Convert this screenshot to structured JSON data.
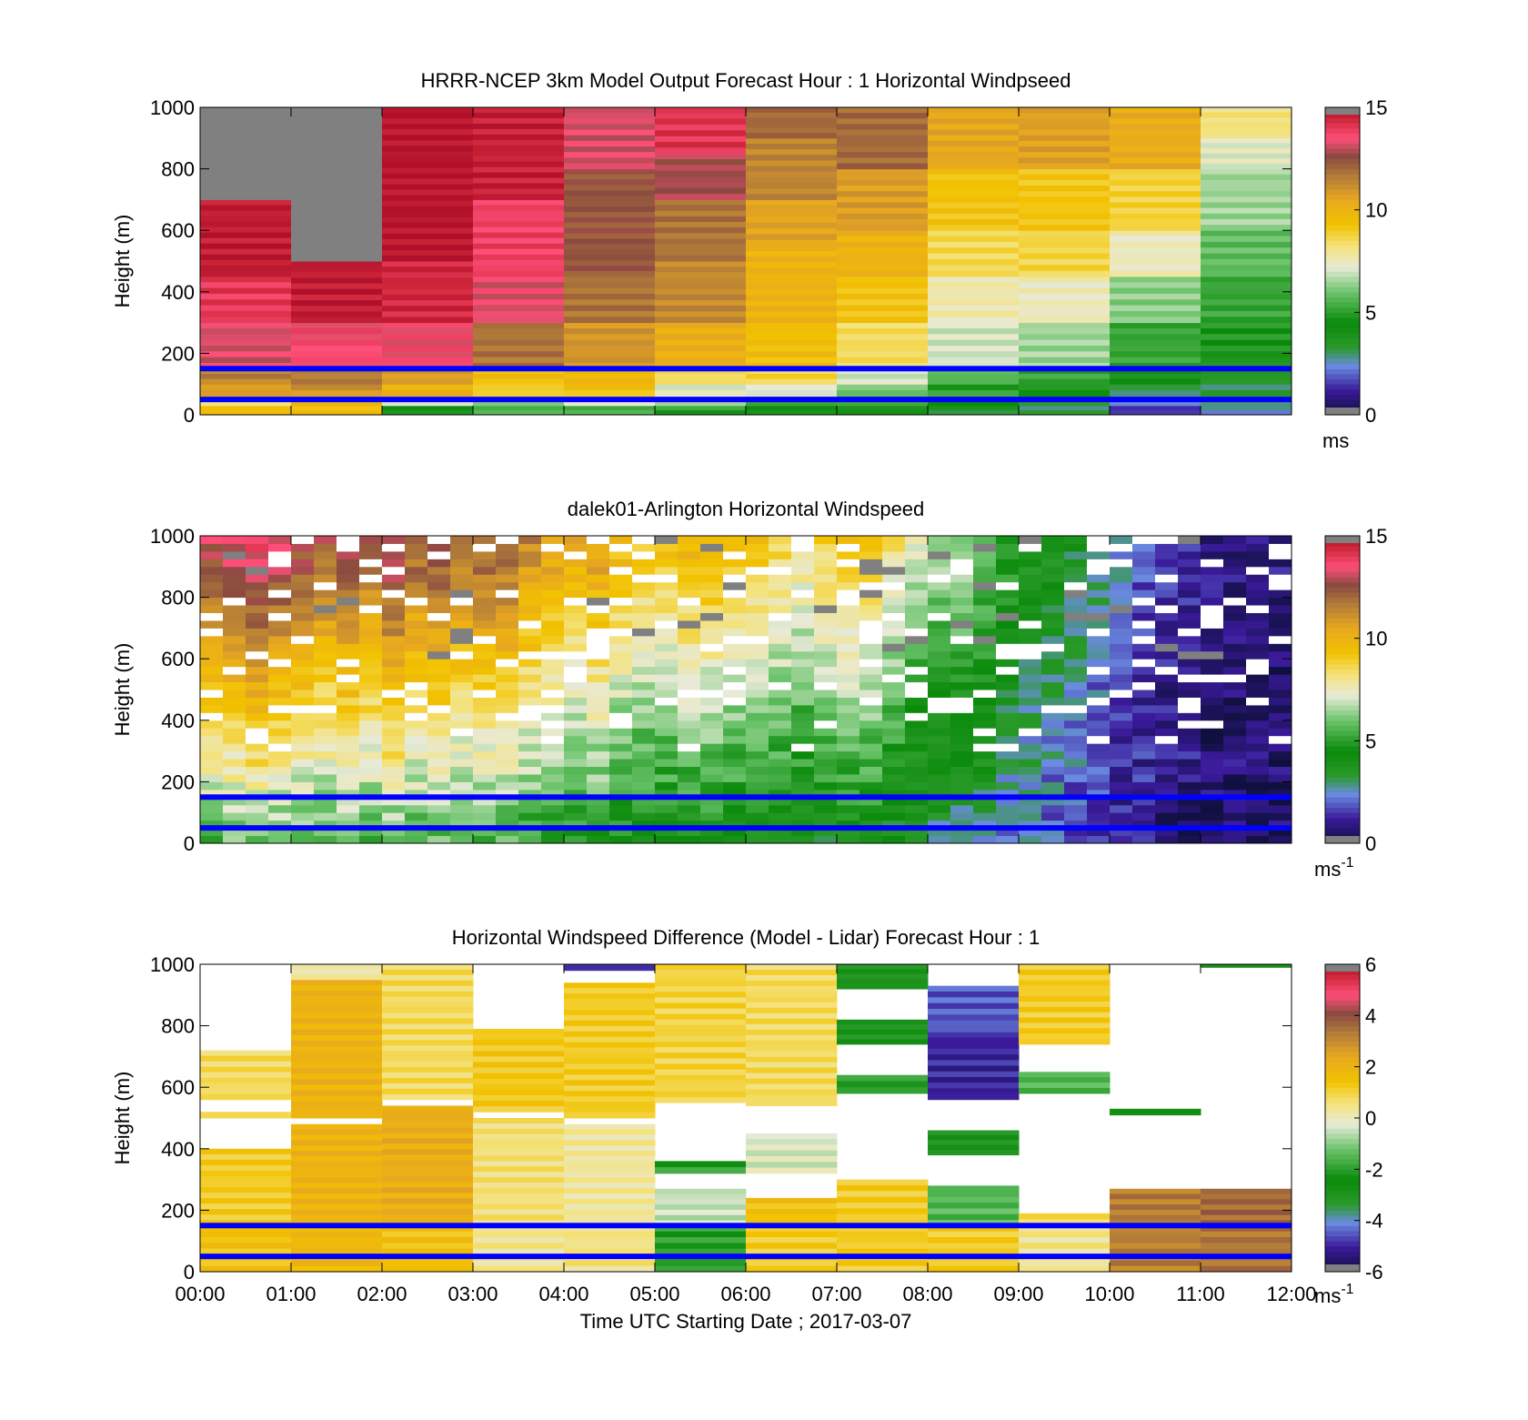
{
  "figure": {
    "xlabel": "Time UTC  Starting Date ; 2017-03-07",
    "x_ticks": [
      "00:00",
      "01:00",
      "02:00",
      "03:00",
      "04:00",
      "05:00",
      "06:00",
      "07:00",
      "08:00",
      "09:00",
      "10:00",
      "11:00",
      "12:00"
    ]
  },
  "colors": {
    "highlight_lines": "#0000ff",
    "missing": "#808080"
  },
  "chart_data": [
    {
      "type": "heatmap",
      "title": "HRRR-NCEP 3km Model Output   Forecast Hour : 1 Horizontal Windpseed",
      "xlabel": "",
      "ylabel": "Height (m)",
      "ylim": [
        0,
        1000
      ],
      "y_ticks": [
        "0",
        "200",
        "400",
        "600",
        "800",
        "1000"
      ],
      "colorbar": {
        "min": 0,
        "max": 15,
        "ticks": [
          "0",
          "5",
          "10",
          "15"
        ],
        "unit": "ms",
        "unit_sup": ""
      },
      "hlines_m": [
        150,
        50
      ],
      "columns": [
        {
          "t": "00:00",
          "vals": [
            {
              "y0": 0,
              "y1": 30,
              "v": 9.5
            },
            {
              "y0": 30,
              "y1": 60,
              "v": 8.5
            },
            {
              "y0": 60,
              "y1": 100,
              "v": 10.8
            },
            {
              "y0": 100,
              "y1": 150,
              "v": 11.5
            },
            {
              "y0": 150,
              "y1": 300,
              "v": 13.2
            },
            {
              "y0": 300,
              "y1": 450,
              "v": 14
            },
            {
              "y0": 450,
              "y1": 700,
              "v": 14.7
            },
            {
              "y0": 700,
              "y1": 1000,
              "v": "nan"
            }
          ]
        },
        {
          "t": "01:00",
          "vals": [
            {
              "y0": 0,
              "y1": 30,
              "v": 9.5
            },
            {
              "y0": 30,
              "y1": 60,
              "v": 9.8
            },
            {
              "y0": 60,
              "y1": 100,
              "v": 11
            },
            {
              "y0": 100,
              "y1": 150,
              "v": 11.6
            },
            {
              "y0": 150,
              "y1": 300,
              "v": 13.6
            },
            {
              "y0": 300,
              "y1": 500,
              "v": 14.7
            },
            {
              "y0": 500,
              "y1": 1000,
              "v": "nan"
            }
          ]
        },
        {
          "t": "02:00",
          "vals": [
            {
              "y0": 0,
              "y1": 30,
              "v": 4
            },
            {
              "y0": 30,
              "y1": 60,
              "v": 7
            },
            {
              "y0": 60,
              "y1": 100,
              "v": 10
            },
            {
              "y0": 100,
              "y1": 150,
              "v": 10.8
            },
            {
              "y0": 150,
              "y1": 300,
              "v": 13.5
            },
            {
              "y0": 300,
              "y1": 500,
              "v": 14.4
            },
            {
              "y0": 500,
              "y1": 1000,
              "v": 14.9
            }
          ]
        },
        {
          "t": "03:00",
          "vals": [
            {
              "y0": 0,
              "y1": 30,
              "v": 5.5
            },
            {
              "y0": 30,
              "y1": 60,
              "v": 6.5
            },
            {
              "y0": 60,
              "y1": 100,
              "v": 9
            },
            {
              "y0": 100,
              "y1": 150,
              "v": 9.5
            },
            {
              "y0": 150,
              "y1": 300,
              "v": 11.8
            },
            {
              "y0": 300,
              "y1": 450,
              "v": 13.3
            },
            {
              "y0": 450,
              "y1": 700,
              "v": 13.8
            },
            {
              "y0": 700,
              "y1": 1000,
              "v": 14.6
            }
          ]
        },
        {
          "t": "04:00",
          "vals": [
            {
              "y0": 0,
              "y1": 30,
              "v": 5.5
            },
            {
              "y0": 30,
              "y1": 60,
              "v": 7
            },
            {
              "y0": 60,
              "y1": 100,
              "v": 9.3
            },
            {
              "y0": 100,
              "y1": 150,
              "v": 9.7
            },
            {
              "y0": 150,
              "y1": 300,
              "v": 11
            },
            {
              "y0": 300,
              "y1": 450,
              "v": 11.8
            },
            {
              "y0": 450,
              "y1": 800,
              "v": 12.4
            },
            {
              "y0": 800,
              "y1": 1000,
              "v": 13.2
            }
          ]
        },
        {
          "t": "05:00",
          "vals": [
            {
              "y0": 0,
              "y1": 30,
              "v": 5
            },
            {
              "y0": 30,
              "y1": 60,
              "v": 6.5
            },
            {
              "y0": 60,
              "y1": 100,
              "v": 7.2
            },
            {
              "y0": 100,
              "y1": 150,
              "v": 8.5
            },
            {
              "y0": 150,
              "y1": 300,
              "v": 10.2
            },
            {
              "y0": 300,
              "y1": 500,
              "v": 11.3
            },
            {
              "y0": 500,
              "y1": 700,
              "v": 11.8
            },
            {
              "y0": 700,
              "y1": 850,
              "v": 12.8
            },
            {
              "y0": 850,
              "y1": 1000,
              "v": 14.1
            }
          ]
        },
        {
          "t": "06:00",
          "vals": [
            {
              "y0": 0,
              "y1": 30,
              "v": 4.5
            },
            {
              "y0": 30,
              "y1": 60,
              "v": 5.5
            },
            {
              "y0": 60,
              "y1": 100,
              "v": 7.2
            },
            {
              "y0": 100,
              "y1": 150,
              "v": 8.7
            },
            {
              "y0": 150,
              "y1": 300,
              "v": 9.5
            },
            {
              "y0": 300,
              "y1": 550,
              "v": 10
            },
            {
              "y0": 550,
              "y1": 700,
              "v": 10.6
            },
            {
              "y0": 700,
              "y1": 900,
              "v": 11.4
            },
            {
              "y0": 900,
              "y1": 1000,
              "v": 12
            }
          ]
        },
        {
          "t": "07:00",
          "vals": [
            {
              "y0": 0,
              "y1": 30,
              "v": 4
            },
            {
              "y0": 30,
              "y1": 60,
              "v": 5
            },
            {
              "y0": 60,
              "y1": 100,
              "v": 6
            },
            {
              "y0": 100,
              "y1": 150,
              "v": 7
            },
            {
              "y0": 150,
              "y1": 300,
              "v": 8.5
            },
            {
              "y0": 300,
              "y1": 450,
              "v": 9.3
            },
            {
              "y0": 450,
              "y1": 600,
              "v": 10
            },
            {
              "y0": 600,
              "y1": 800,
              "v": 10.8
            },
            {
              "y0": 800,
              "y1": 1000,
              "v": 12
            }
          ]
        },
        {
          "t": "08:00",
          "vals": [
            {
              "y0": 0,
              "y1": 30,
              "v": 3.5
            },
            {
              "y0": 30,
              "y1": 60,
              "v": 4.5
            },
            {
              "y0": 60,
              "y1": 100,
              "v": 5
            },
            {
              "y0": 100,
              "y1": 150,
              "v": 5.7
            },
            {
              "y0": 150,
              "y1": 300,
              "v": 7
            },
            {
              "y0": 300,
              "y1": 450,
              "v": 7.7
            },
            {
              "y0": 450,
              "y1": 600,
              "v": 8.6
            },
            {
              "y0": 600,
              "y1": 800,
              "v": 9.3
            },
            {
              "y0": 800,
              "y1": 1000,
              "v": 10.5
            }
          ]
        },
        {
          "t": "09:00",
          "vals": [
            {
              "y0": 0,
              "y1": 30,
              "v": 3
            },
            {
              "y0": 30,
              "y1": 60,
              "v": 3.5
            },
            {
              "y0": 60,
              "y1": 100,
              "v": 4.8
            },
            {
              "y0": 100,
              "y1": 150,
              "v": 5.2
            },
            {
              "y0": 150,
              "y1": 300,
              "v": 6.5
            },
            {
              "y0": 300,
              "y1": 450,
              "v": 7.5
            },
            {
              "y0": 450,
              "y1": 600,
              "v": 8.7
            },
            {
              "y0": 600,
              "y1": 800,
              "v": 9.2
            },
            {
              "y0": 800,
              "y1": 1000,
              "v": 10.7
            }
          ]
        },
        {
          "t": "10:00",
          "vals": [
            {
              "y0": 0,
              "y1": 30,
              "v": 1.5
            },
            {
              "y0": 30,
              "y1": 60,
              "v": 2
            },
            {
              "y0": 60,
              "y1": 100,
              "v": 3
            },
            {
              "y0": 100,
              "y1": 150,
              "v": 4
            },
            {
              "y0": 150,
              "y1": 300,
              "v": 5.2
            },
            {
              "y0": 300,
              "y1": 450,
              "v": 6.3
            },
            {
              "y0": 450,
              "y1": 600,
              "v": 7.5
            },
            {
              "y0": 600,
              "y1": 800,
              "v": 8.8
            },
            {
              "y0": 800,
              "y1": 1000,
              "v": 10.3
            }
          ]
        },
        {
          "t": "11:00",
          "vals": [
            {
              "y0": 0,
              "y1": 30,
              "v": 2.5
            },
            {
              "y0": 30,
              "y1": 60,
              "v": 3
            },
            {
              "y0": 60,
              "y1": 100,
              "v": 3.2
            },
            {
              "y0": 100,
              "y1": 150,
              "v": 3.5
            },
            {
              "y0": 150,
              "y1": 300,
              "v": 4.8
            },
            {
              "y0": 300,
              "y1": 450,
              "v": 5.2
            },
            {
              "y0": 450,
              "y1": 600,
              "v": 5.8
            },
            {
              "y0": 600,
              "y1": 800,
              "v": 6.5
            },
            {
              "y0": 800,
              "y1": 900,
              "v": 7.2
            },
            {
              "y0": 900,
              "y1": 1000,
              "v": 8.2
            }
          ]
        }
      ]
    },
    {
      "type": "heatmap",
      "title": "dalek01-Arlington  Horizontal Windspeed",
      "xlabel": "",
      "ylabel": "Height (m)",
      "ylim": [
        0,
        1000
      ],
      "y_ticks": [
        "0",
        "200",
        "400",
        "600",
        "800",
        "1000"
      ],
      "colorbar": {
        "min": 0,
        "max": 15,
        "ticks": [
          "0",
          "5",
          "10",
          "15"
        ],
        "unit": "ms",
        "unit_sup": "-1"
      },
      "hlines_m": [
        150,
        50
      ],
      "column_profiles": [
        12.5,
        13,
        13.5,
        13,
        12.5,
        12,
        12.5,
        12,
        13,
        12,
        12.5,
        11.5,
        12,
        12,
        11,
        10.5,
        10,
        10.5,
        9.5,
        9,
        9,
        9.5,
        9.5,
        9,
        9,
        8.5,
        8,
        8.5,
        9,
        9,
        8,
        7,
        6.5,
        6.5,
        6,
        5,
        4.5,
        4,
        3.5,
        3,
        2.5,
        2,
        1.5,
        1.5,
        1,
        1,
        1,
        1
      ],
      "note": "half-hour columns between 00:00 and 12:00; values near 1000 m high, decreasing toward surface"
    },
    {
      "type": "heatmap",
      "title": "Horizontal Windspeed Difference (Model - Lidar) Forecast Hour : 1",
      "xlabel": "Time UTC  Starting Date ; 2017-03-07",
      "ylabel": "Height (m)",
      "ylim": [
        0,
        1000
      ],
      "y_ticks": [
        "0",
        "200",
        "400",
        "600",
        "800",
        "1000"
      ],
      "colorbar": {
        "min": -6,
        "max": 6,
        "ticks": [
          "-6",
          "-4",
          "-2",
          "0",
          "2",
          "4",
          "6"
        ],
        "unit": "ms",
        "unit_sup": "-1"
      },
      "hlines_m": [
        150,
        50
      ],
      "columns": [
        {
          "t": "00:00",
          "vals": [
            {
              "y0": 0,
              "y1": 150,
              "v": 1.5
            },
            {
              "y0": 150,
              "y1": 400,
              "v": 1.2
            },
            {
              "y0": 500,
              "y1": 520,
              "v": 1
            },
            {
              "y0": 560,
              "y1": 720,
              "v": 0.8
            }
          ]
        },
        {
          "t": "01:00",
          "vals": [
            {
              "y0": 0,
              "y1": 150,
              "v": 1.8
            },
            {
              "y0": 150,
              "y1": 480,
              "v": 2
            },
            {
              "y0": 500,
              "y1": 950,
              "v": 2
            },
            {
              "y0": 950,
              "y1": 1000,
              "v": 0.2
            }
          ]
        },
        {
          "t": "02:00",
          "vals": [
            {
              "y0": 0,
              "y1": 150,
              "v": 1.5
            },
            {
              "y0": 150,
              "y1": 540,
              "v": 2.2
            },
            {
              "y0": 560,
              "y1": 1000,
              "v": 0.8
            }
          ]
        },
        {
          "t": "03:00",
          "vals": [
            {
              "y0": 0,
              "y1": 150,
              "v": 0.4
            },
            {
              "y0": 150,
              "y1": 500,
              "v": 0.6
            },
            {
              "y0": 520,
              "y1": 790,
              "v": 1.3
            }
          ]
        },
        {
          "t": "04:00",
          "vals": [
            {
              "y0": 0,
              "y1": 150,
              "v": 0.5
            },
            {
              "y0": 150,
              "y1": 480,
              "v": 0.3
            },
            {
              "y0": 500,
              "y1": 940,
              "v": 1.2
            },
            {
              "y0": 980,
              "y1": 1000,
              "v": -5
            }
          ]
        },
        {
          "t": "05:00",
          "vals": [
            {
              "y0": 0,
              "y1": 150,
              "v": -2
            },
            {
              "y0": 150,
              "y1": 270,
              "v": -0.5
            },
            {
              "y0": 320,
              "y1": 360,
              "v": -2
            },
            {
              "y0": 550,
              "y1": 1000,
              "v": 1
            }
          ]
        },
        {
          "t": "06:00",
          "vals": [
            {
              "y0": 0,
              "y1": 150,
              "v": 1.2
            },
            {
              "y0": 150,
              "y1": 240,
              "v": 1.5
            },
            {
              "y0": 320,
              "y1": 450,
              "v": -0.3
            },
            {
              "y0": 540,
              "y1": 1000,
              "v": 0.8
            }
          ]
        },
        {
          "t": "07:00",
          "vals": [
            {
              "y0": 0,
              "y1": 150,
              "v": 1.2
            },
            {
              "y0": 150,
              "y1": 300,
              "v": 1.2
            },
            {
              "y0": 580,
              "y1": 640,
              "v": -2
            },
            {
              "y0": 740,
              "y1": 820,
              "v": -3
            },
            {
              "y0": 920,
              "y1": 1000,
              "v": -3
            }
          ]
        },
        {
          "t": "08:00",
          "vals": [
            {
              "y0": 0,
              "y1": 150,
              "v": 1.2
            },
            {
              "y0": 150,
              "y1": 280,
              "v": -1.5
            },
            {
              "y0": 380,
              "y1": 460,
              "v": -3
            },
            {
              "y0": 560,
              "y1": 780,
              "v": -5
            },
            {
              "y0": 780,
              "y1": 930,
              "v": -4.5
            }
          ]
        },
        {
          "t": "09:00",
          "vals": [
            {
              "y0": 0,
              "y1": 150,
              "v": 0.4
            },
            {
              "y0": 150,
              "y1": 190,
              "v": 0.8
            },
            {
              "y0": 580,
              "y1": 650,
              "v": -1.5
            },
            {
              "y0": 740,
              "y1": 1000,
              "v": 1.2
            }
          ]
        },
        {
          "t": "10:00",
          "vals": [
            {
              "y0": 0,
              "y1": 150,
              "v": 3.2
            },
            {
              "y0": 150,
              "y1": 270,
              "v": 3.3
            },
            {
              "y0": 510,
              "y1": 530,
              "v": -2.5
            }
          ]
        },
        {
          "t": "11:00",
          "vals": [
            {
              "y0": 0,
              "y1": 150,
              "v": 3.4
            },
            {
              "y0": 150,
              "y1": 270,
              "v": 3.6
            },
            {
              "y0": 990,
              "y1": 1000,
              "v": -2.5
            }
          ]
        }
      ]
    }
  ]
}
